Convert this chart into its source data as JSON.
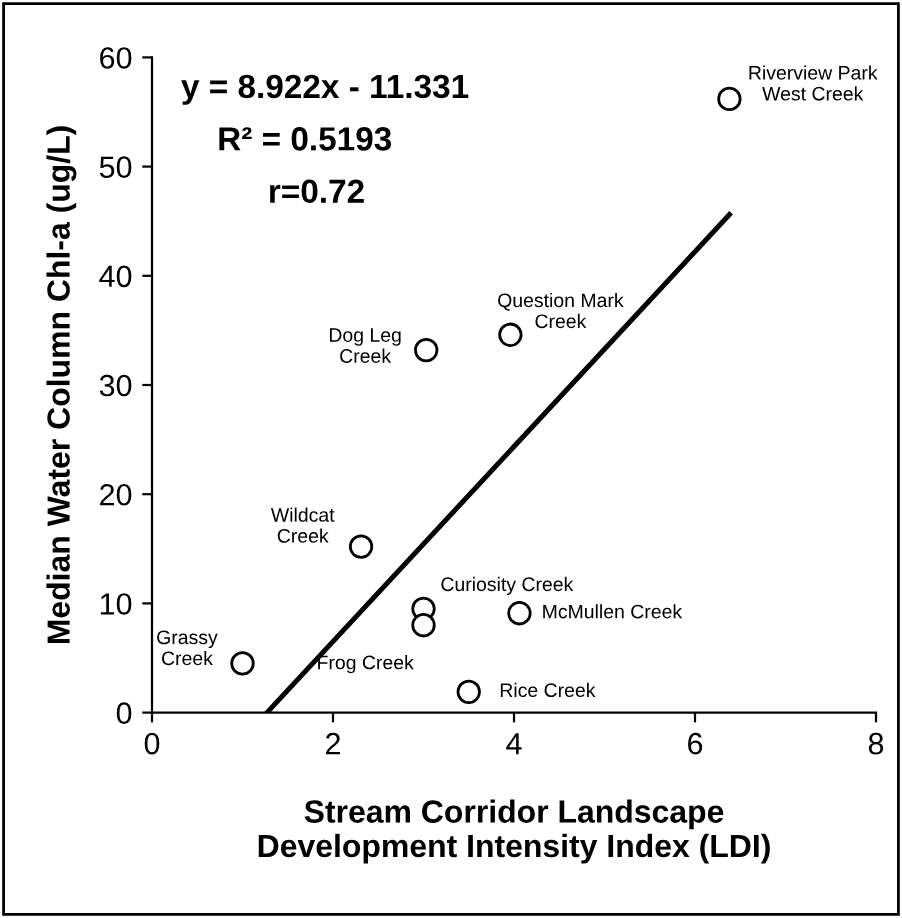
{
  "chart_data": {
    "type": "scatter",
    "xlabel": "Stream Corridor Landscape\nDevelopment Intensity Index (LDI)",
    "ylabel": "Median Water Column Chl-a (ug/L)",
    "xlim": [
      0,
      8
    ],
    "xticks": [
      0,
      2,
      4,
      6,
      8
    ],
    "ylim": [
      0,
      60
    ],
    "yticks": [
      0,
      10,
      20,
      30,
      40,
      50,
      60
    ],
    "grid": false,
    "marker": "circle",
    "series": [
      {
        "color": "#000000",
        "x": [
          6.38,
          3.03,
          3.96,
          2.31,
          3.0,
          3.0,
          4.06,
          3.5,
          1.0
        ],
        "values": [
          56.2,
          33.2,
          34.6,
          15.2,
          9.5,
          8.0,
          9.1,
          1.9,
          4.5
        ]
      },
      {
        "type": "line",
        "color": "#000000",
        "line_style": "solid",
        "marker": "none",
        "x": [
          1.27,
          6.38
        ],
        "values": [
          0,
          45.6
        ]
      }
    ],
    "annotations": [
      "y = 8.922x - 11.331",
      "R² = 0.5193",
      "r=0.72",
      {
        "text": "Riverview Park\nWest Creek",
        "x": 6.38,
        "y": 56.2
      },
      {
        "text": "Dog Leg\nCreek",
        "x": 3.03,
        "y": 33.2
      },
      {
        "text": "Question Mark\nCreek",
        "x": 3.96,
        "y": 34.6
      },
      {
        "text": "Wildcat\nCreek",
        "x": 2.31,
        "y": 15.2
      },
      {
        "text": "Curiosity Creek",
        "x": 3.0,
        "y": 9.5
      },
      {
        "text": "Frog Creek",
        "x": 3.0,
        "y": 8.0
      },
      {
        "text": "McMullen Creek",
        "x": 4.06,
        "y": 9.1
      },
      {
        "text": "Rice Creek",
        "x": 3.5,
        "y": 1.9
      },
      {
        "text": "Grassy\nCreek",
        "x": 1.0,
        "y": 4.5
      }
    ]
  }
}
